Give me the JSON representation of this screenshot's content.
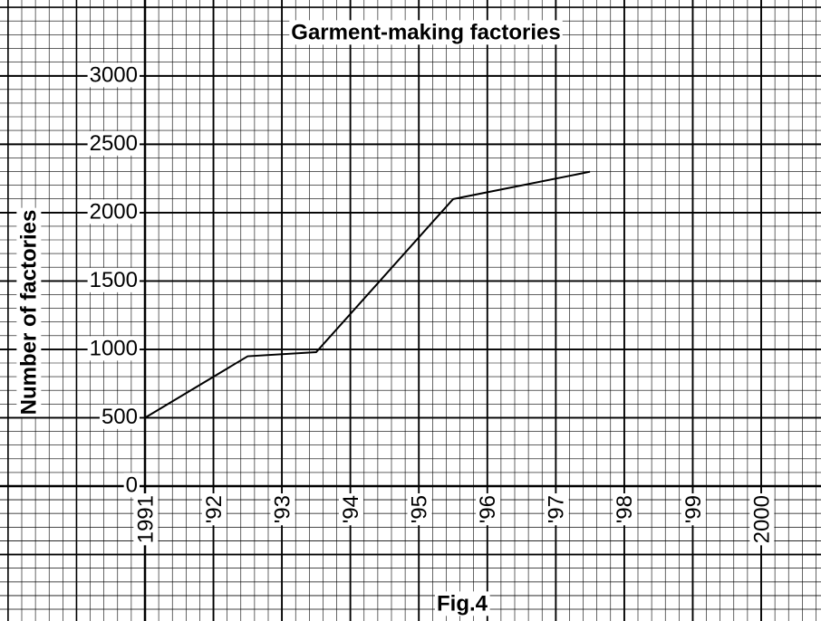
{
  "chart_data": {
    "type": "line",
    "title": "Garment-making factories",
    "ylabel": "Number of factories",
    "caption": "Fig.4",
    "x": [
      1991,
      1992.5,
      1993.5,
      1995.5,
      1997.5
    ],
    "values": [
      500,
      950,
      980,
      2100,
      2300
    ],
    "color": "#000000",
    "xlim": [
      1991,
      2000
    ],
    "xticks": [
      1991,
      {
        "value": 1992,
        "label": "'92"
      },
      {
        "value": 1993,
        "label": "'93"
      },
      {
        "value": 1994,
        "label": "'94"
      },
      {
        "value": 1995,
        "label": "'95"
      },
      {
        "value": 1996,
        "label": "'96"
      },
      {
        "value": 1997,
        "label": "'97"
      },
      {
        "value": 1998,
        "label": "'98"
      },
      {
        "value": 1999,
        "label": "'99"
      },
      2000
    ],
    "ylim": [
      0,
      3000
    ],
    "yticks": [
      0,
      500,
      1000,
      1500,
      2000,
      2500,
      3000
    ],
    "grid": true
  }
}
